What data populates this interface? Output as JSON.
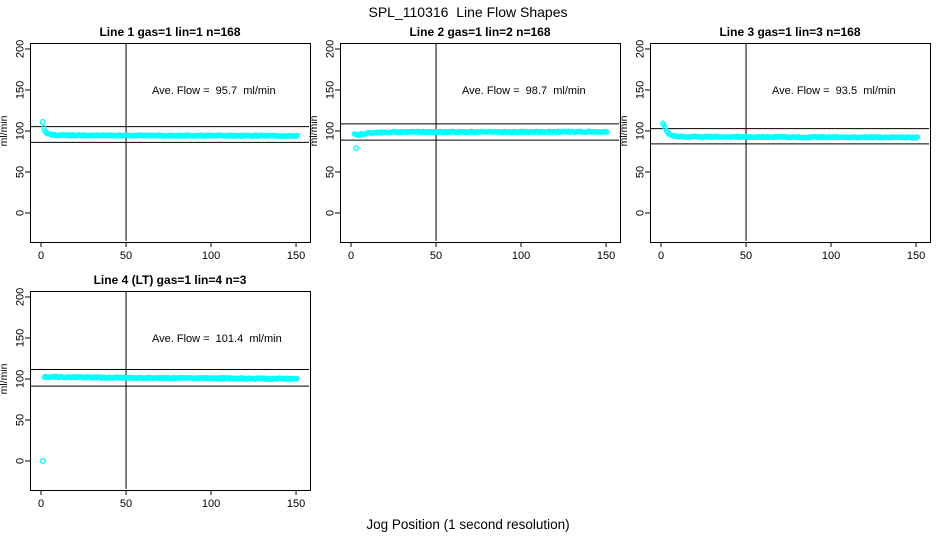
{
  "title": "SPL_110316  Line Flow Shapes",
  "xlabel": "Jog Position (1 second resolution)",
  "colors": {
    "marker": "#00FFFF",
    "axis": "#000000",
    "background": "#FFFFFF"
  },
  "chart_data": [
    {
      "type": "scatter",
      "title": "Line 1 gas=1 lin=1 n=168",
      "n": 168,
      "ylabel": "ml/min",
      "ave_label": "Ave. Flow =  95.7  ml/min",
      "ave_flow": 95.7,
      "grid": {
        "row": 0,
        "col": 0
      },
      "x_ticks": [
        0,
        50,
        100,
        150
      ],
      "y_ticks": [
        0,
        50,
        100,
        150,
        200
      ],
      "xlim_display": [
        -6.5,
        158.2
      ],
      "ylim_display": [
        -35.4,
        207.3
      ],
      "vline_x": 50,
      "ref_lines": {
        "upper": 105.3,
        "lower": 86.1
      },
      "lead_points": [
        [
          1,
          111
        ]
      ],
      "band_anchors": [
        [
          1.5,
          104
        ],
        [
          2,
          101
        ],
        [
          3,
          98
        ],
        [
          4,
          96.5
        ],
        [
          6,
          95.3
        ],
        [
          12,
          94.8
        ],
        [
          40,
          94.6
        ],
        [
          90,
          94.4
        ],
        [
          151,
          93.9
        ]
      ],
      "band_x_end": 151,
      "band_step": 0.7,
      "band_noise": 0.7
    },
    {
      "type": "scatter",
      "title": "Line 2 gas=1 lin=2 n=168",
      "n": 168,
      "ylabel": "ml/min",
      "ave_label": "Ave. Flow =  98.7  ml/min",
      "ave_flow": 98.7,
      "grid": {
        "row": 0,
        "col": 1
      },
      "x_ticks": [
        0,
        50,
        100,
        150
      ],
      "y_ticks": [
        0,
        50,
        100,
        150,
        200
      ],
      "xlim_display": [
        -6.5,
        158.2
      ],
      "ylim_display": [
        -35.4,
        207.3
      ],
      "vline_x": 50,
      "ref_lines": {
        "upper": 108.6,
        "lower": 88.8
      },
      "lead_points": [
        [
          3,
          79
        ]
      ],
      "band_anchors": [
        [
          2,
          96
        ],
        [
          3.5,
          94.8
        ],
        [
          6,
          96
        ],
        [
          10,
          97.3
        ],
        [
          16,
          98.2
        ],
        [
          30,
          98.8
        ],
        [
          151,
          99.1
        ]
      ],
      "band_x_end": 151,
      "band_step": 0.7,
      "band_noise": 0.7
    },
    {
      "type": "scatter",
      "title": "Line 3 gas=1 lin=3 n=168",
      "n": 168,
      "ylabel": "ml/min",
      "ave_label": "Ave. Flow =  93.5  ml/min",
      "ave_flow": 93.5,
      "grid": {
        "row": 0,
        "col": 2
      },
      "x_ticks": [
        0,
        50,
        100,
        150
      ],
      "y_ticks": [
        0,
        50,
        100,
        150,
        200
      ],
      "xlim_display": [
        -6.5,
        158.2
      ],
      "ylim_display": [
        -35.4,
        207.3
      ],
      "vline_x": 50,
      "ref_lines": {
        "upper": 102.9,
        "lower": 84.2
      },
      "lead_points": [],
      "band_anchors": [
        [
          1,
          110
        ],
        [
          2,
          106.5
        ],
        [
          3,
          101.5
        ],
        [
          4,
          98
        ],
        [
          5,
          96
        ],
        [
          6.5,
          94.5
        ],
        [
          9,
          93.4
        ],
        [
          20,
          92.9
        ],
        [
          60,
          92.7
        ],
        [
          151,
          92.1
        ]
      ],
      "band_x_end": 151,
      "band_step": 0.7,
      "band_noise": 0.7
    },
    {
      "type": "scatter",
      "title": "Line 4 (LT) gas=1 lin=4 n=3",
      "n": 3,
      "ylabel": "ml/min",
      "ave_label": "Ave. Flow =  101.4  ml/min",
      "ave_flow": 101.4,
      "grid": {
        "row": 1,
        "col": 0
      },
      "x_ticks": [
        0,
        50,
        100,
        150
      ],
      "y_ticks": [
        0,
        50,
        100,
        150,
        200
      ],
      "xlim_display": [
        -6.5,
        158.2
      ],
      "ylim_display": [
        -35.4,
        207.3
      ],
      "vline_x": 50,
      "ref_lines": {
        "upper": 111.5,
        "lower": 91.3
      },
      "lead_points": [
        [
          1,
          0
        ]
      ],
      "band_anchors": [
        [
          2,
          102.3
        ],
        [
          8,
          102.5
        ],
        [
          30,
          101.8
        ],
        [
          70,
          101.2
        ],
        [
          120,
          100.6
        ],
        [
          151,
          100.1
        ]
      ],
      "band_x_end": 151,
      "band_step": 0.7,
      "band_noise": 0.8
    }
  ]
}
